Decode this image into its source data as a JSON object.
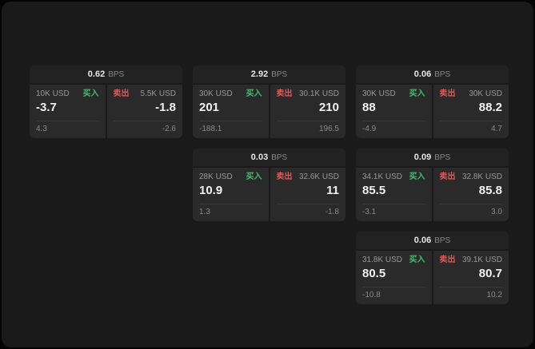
{
  "labels": {
    "bps": "BPS",
    "buy": "买入",
    "sell": "卖出"
  },
  "colors": {
    "buy": "#3fbf6f",
    "sell": "#e25757"
  },
  "cards": [
    {
      "bps_value": "0.62",
      "buy": {
        "amount": "10K USD",
        "price": "-3.7",
        "sub": "4.3"
      },
      "sell": {
        "amount": "5.5K USD",
        "price": "-1.8",
        "sub": "-2.6"
      }
    },
    {
      "bps_value": "2.92",
      "buy": {
        "amount": "30K USD",
        "price": "201",
        "sub": "-188.1"
      },
      "sell": {
        "amount": "30.1K USD",
        "price": "210",
        "sub": "196.5"
      }
    },
    {
      "bps_value": "0.06",
      "buy": {
        "amount": "30K USD",
        "price": "88",
        "sub": "-4.9"
      },
      "sell": {
        "amount": "30K USD",
        "price": "88.2",
        "sub": "4.7"
      }
    },
    {
      "bps_value": "0.03",
      "buy": {
        "amount": "28K USD",
        "price": "10.9",
        "sub": "1.3"
      },
      "sell": {
        "amount": "32.6K USD",
        "price": "11",
        "sub": "-1.8"
      }
    },
    {
      "bps_value": "0.09",
      "buy": {
        "amount": "34.1K USD",
        "price": "85.5",
        "sub": "-3.1"
      },
      "sell": {
        "amount": "32.8K USD",
        "price": "85.8",
        "sub": "3.0"
      }
    },
    {
      "bps_value": "0.06",
      "buy": {
        "amount": "31.8K USD",
        "price": "80.5",
        "sub": "-10.8"
      },
      "sell": {
        "amount": "39.1K USD",
        "price": "80.7",
        "sub": "10.2"
      }
    }
  ]
}
